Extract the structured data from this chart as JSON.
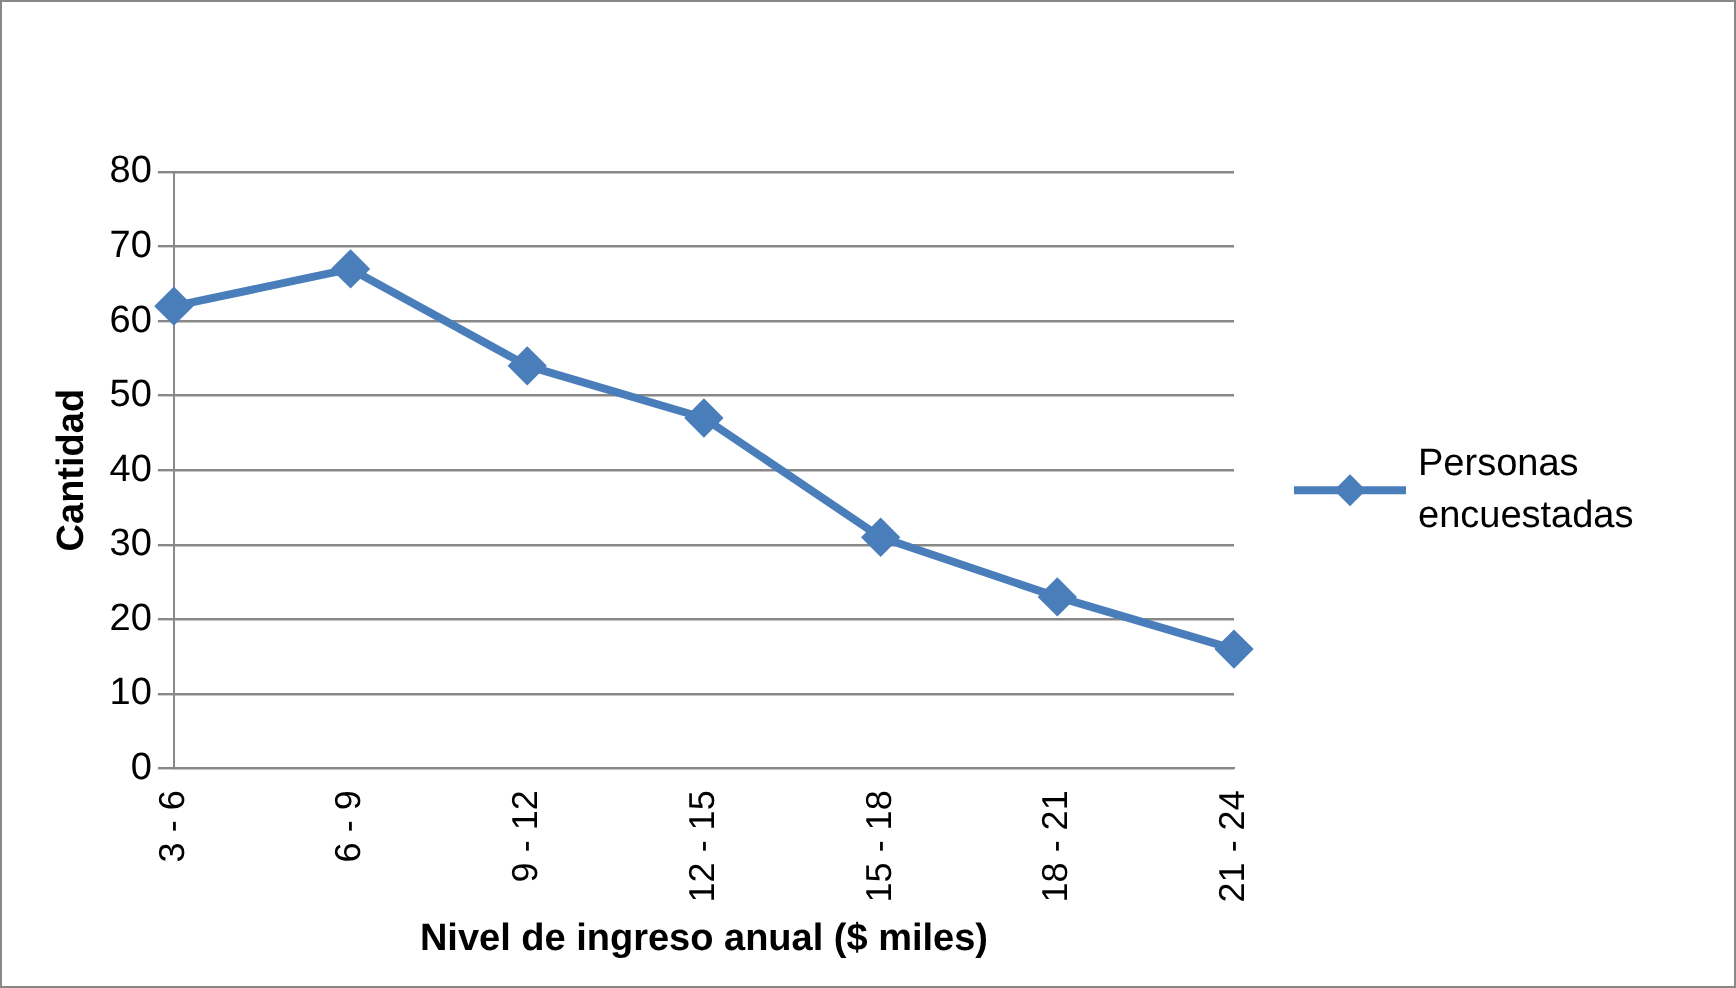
{
  "chart_data": {
    "type": "line",
    "xlabel": "Nivel de ingreso anual ($ miles)",
    "ylabel": "Cantidad",
    "categories": [
      "3 - 6",
      "6 - 9",
      "9 - 12",
      "12 - 15",
      "15 - 18",
      "18 - 21",
      "21 - 24"
    ],
    "series": [
      {
        "name": "Personas encuestadas",
        "color": "#4a7ebb",
        "values": [
          62,
          67,
          54,
          47,
          31,
          23,
          16
        ]
      }
    ],
    "ylim": [
      0,
      80
    ],
    "yticks": [
      0,
      10,
      20,
      30,
      40,
      50,
      60,
      70,
      80
    ],
    "grid": "y",
    "legend": "right",
    "marker": "diamond",
    "line_style": "solid"
  }
}
